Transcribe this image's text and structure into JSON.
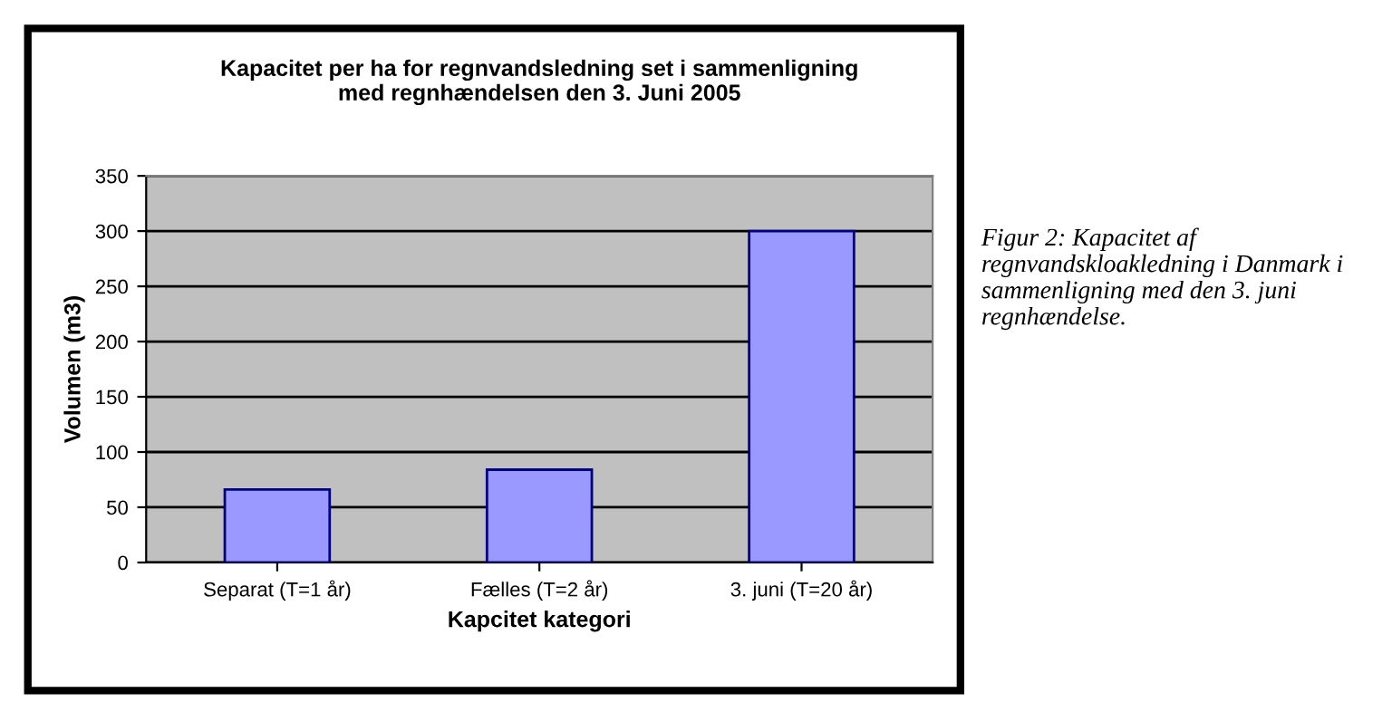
{
  "chart_data": {
    "type": "bar",
    "title": "Kapacitet per ha for regnvandsledning set i sammenligning\nmed regnhændelsen den 3. Juni 2005",
    "xlabel": "Kapcitet kategori",
    "ylabel": "Volumen (m3)",
    "categories": [
      "Separat (T=1 år)",
      "Fælles (T=2 år)",
      "3. juni (T=20 år)"
    ],
    "values": [
      66,
      84,
      300
    ],
    "color": "#9999ff",
    "ylim": [
      0,
      350
    ],
    "yticks": [
      0,
      50,
      100,
      150,
      200,
      250,
      300,
      350
    ],
    "grid": "y",
    "annotations": [
      "Figur 2: Kapacitet af regnvandskloakledning i Danmark i sammenligning med den 3. juni regnhændelse."
    ]
  }
}
